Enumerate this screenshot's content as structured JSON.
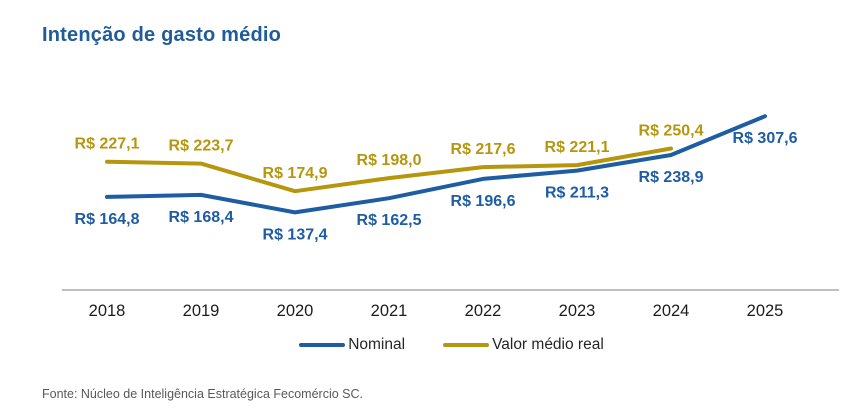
{
  "title": "Intenção de gasto médio",
  "footer": {
    "source": "Fonte: Núcleo de Inteligência Estratégica Fecomércio SC."
  },
  "colors": {
    "background": "#FFFFFF",
    "title_text": "#1F5C99",
    "axis_line": "#ABABAB",
    "tick_label": "#1C1C1C",
    "legend_text": "#262626",
    "footer_text": "#595959",
    "nominal_blue": "#1E5CA3",
    "real_gold": "#B6960D"
  },
  "chart_data": {
    "type": "line",
    "title": "Intenção de gasto médio",
    "categories": [
      "2018",
      "2019",
      "2020",
      "2021",
      "2022",
      "2023",
      "2024",
      "2025"
    ],
    "series": [
      {
        "id": "nominal",
        "name": "Nominal",
        "color": "#1E5CA3",
        "label_position": "below",
        "values": [
          164.8,
          168.4,
          137.4,
          162.5,
          196.6,
          211.3,
          238.9,
          307.6
        ],
        "labels": [
          "R$ 164,8",
          "R$ 168,4",
          "R$ 137,4",
          "R$ 162,5",
          "R$ 196,6",
          "R$ 211,3",
          "R$ 238,9",
          "R$ 307,6"
        ]
      },
      {
        "id": "valor-medio-real",
        "name": "Valor médio real",
        "color": "#B6960D",
        "label_position": "above",
        "values": [
          227.1,
          223.7,
          174.9,
          198.0,
          217.6,
          221.1,
          250.4,
          null
        ],
        "labels": [
          "R$ 227,1",
          "R$ 223,7",
          "R$ 174,9",
          "R$ 198,0",
          "R$ 217,6",
          "R$ 221,1",
          "R$ 250,4",
          null
        ]
      }
    ],
    "xlabel": "",
    "ylabel": "",
    "ylim": [
      0,
      340
    ],
    "grid": false,
    "x_axis_line": true,
    "legend_position": "bottom",
    "currency_prefix": "R$"
  }
}
